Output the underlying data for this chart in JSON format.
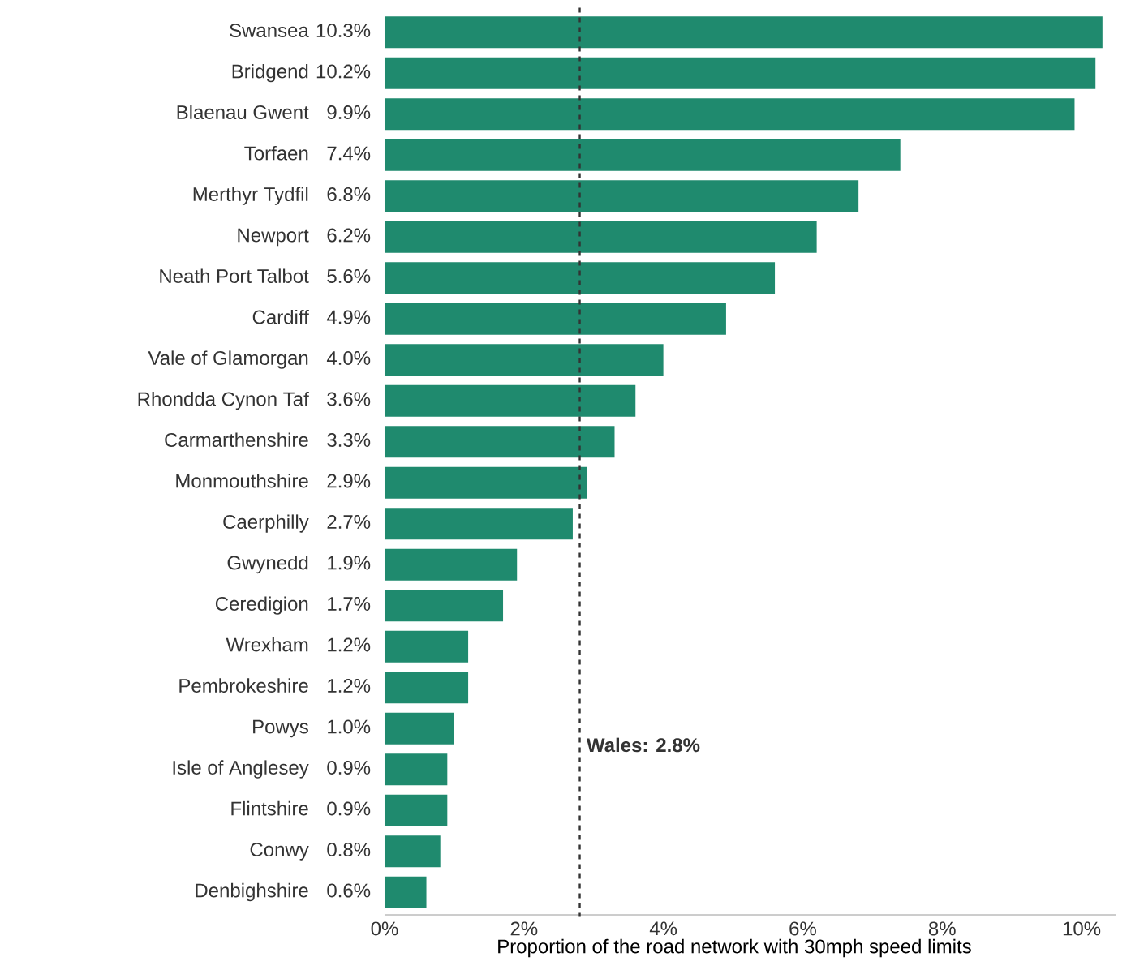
{
  "chart_data": {
    "type": "bar",
    "orientation": "horizontal",
    "xlabel": "Proportion of the road network with 30mph speed limits",
    "categories": [
      "Swansea",
      "Bridgend",
      "Blaenau Gwent",
      "Torfaen",
      "Merthyr Tydfil",
      "Newport",
      "Neath Port Talbot",
      "Cardiff",
      "Vale of Glamorgan",
      "Rhondda Cynon Taf",
      "Carmarthenshire",
      "Monmouthshire",
      "Caerphilly",
      "Gwynedd",
      "Ceredigion",
      "Wrexham",
      "Pembrokeshire",
      "Powys",
      "Isle of Anglesey",
      "Flintshire",
      "Conwy",
      "Denbighshire"
    ],
    "values": [
      10.3,
      10.2,
      9.9,
      7.4,
      6.8,
      6.2,
      5.6,
      4.9,
      4.0,
      3.6,
      3.3,
      2.9,
      2.7,
      1.9,
      1.7,
      1.2,
      1.2,
      1.0,
      0.9,
      0.9,
      0.8,
      0.6
    ],
    "value_labels": [
      "10.3%",
      "10.2%",
      "9.9%",
      "7.4%",
      "6.8%",
      "6.2%",
      "5.6%",
      "4.9%",
      "4.0%",
      "3.6%",
      "3.3%",
      "2.9%",
      "2.7%",
      "1.9%",
      "1.7%",
      "1.2%",
      "1.2%",
      "1.0%",
      "0.9%",
      "0.9%",
      "0.8%",
      "0.6%"
    ],
    "color": "#1f8a6e",
    "xlim": [
      0,
      10.5
    ],
    "xticks": [
      {
        "value": 0,
        "label": "0%"
      },
      {
        "value": 2,
        "label": "2%"
      },
      {
        "value": 4,
        "label": "4%"
      },
      {
        "value": 6,
        "label": "6%"
      },
      {
        "value": 8,
        "label": "8%"
      },
      {
        "value": 10,
        "label": "10%"
      }
    ],
    "ref_lines": [
      {
        "axis": "x",
        "value": 2.8,
        "label": "Wales: 2.8%",
        "color": "#333333",
        "line_style": "dashed"
      }
    ],
    "grid": false
  }
}
